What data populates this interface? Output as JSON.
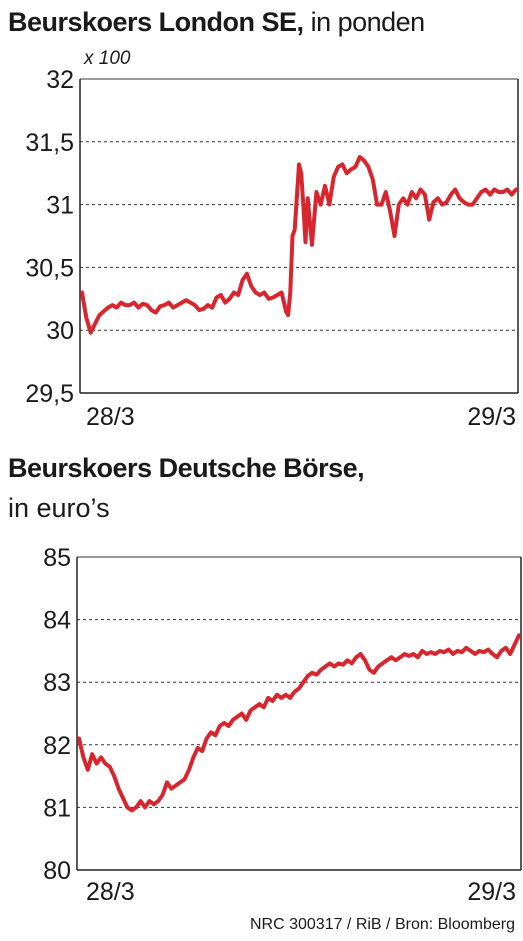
{
  "source": "NRC 300317 / RiB / Bron: Bloomberg",
  "chart_data": [
    {
      "type": "line",
      "title": "Beurskoers London SE,",
      "subtitle": "in ponden",
      "unit_label": "x 100",
      "ylim": [
        29.5,
        32
      ],
      "yticks": [
        "32",
        "31,5",
        "31",
        "30,5",
        "30",
        "29,5"
      ],
      "ytick_values": [
        32,
        31.5,
        31,
        30.5,
        30,
        29.5
      ],
      "x_tick_labels": [
        "28/3",
        "29/3"
      ],
      "grid": true,
      "color": "#d7262e",
      "series": [
        {
          "x": [
            0,
            0.01,
            0.02,
            0.03,
            0.04,
            0.05,
            0.06,
            0.07,
            0.08,
            0.09,
            0.1,
            0.11,
            0.12,
            0.13,
            0.14,
            0.15,
            0.16,
            0.17,
            0.18,
            0.19,
            0.2,
            0.21,
            0.22,
            0.23,
            0.24,
            0.25,
            0.26,
            0.27,
            0.28,
            0.29,
            0.3,
            0.31,
            0.32,
            0.33,
            0.34,
            0.35,
            0.36,
            0.37,
            0.38,
            0.39,
            0.4,
            0.41,
            0.42,
            0.43,
            0.44,
            0.45,
            0.46,
            0.47,
            0.475,
            0.48,
            0.485,
            0.49,
            0.5,
            0.505,
            0.51,
            0.515,
            0.52,
            0.53,
            0.54,
            0.55,
            0.56,
            0.57,
            0.58,
            0.59,
            0.6,
            0.61,
            0.62,
            0.63,
            0.64,
            0.65,
            0.66,
            0.67,
            0.68,
            0.69,
            0.7,
            0.71,
            0.72,
            0.73,
            0.74,
            0.75,
            0.76,
            0.77,
            0.78,
            0.79,
            0.8,
            0.81,
            0.82,
            0.83,
            0.84,
            0.85,
            0.86,
            0.87,
            0.88,
            0.89,
            0.9,
            0.91,
            0.92,
            0.93,
            0.94,
            0.95,
            0.96,
            0.97,
            0.98,
            0.99,
            1.0
          ],
          "y": [
            30.3,
            30.1,
            29.98,
            30.05,
            30.12,
            30.15,
            30.18,
            30.2,
            30.18,
            30.22,
            30.2,
            30.2,
            30.22,
            30.18,
            30.21,
            30.2,
            30.16,
            30.14,
            30.19,
            30.2,
            30.22,
            30.18,
            30.2,
            30.22,
            30.24,
            30.22,
            30.2,
            30.16,
            30.17,
            30.2,
            30.18,
            30.26,
            30.28,
            30.22,
            30.25,
            30.3,
            30.28,
            30.4,
            30.45,
            30.35,
            30.3,
            30.28,
            30.3,
            30.25,
            30.26,
            30.28,
            30.3,
            30.15,
            30.12,
            30.3,
            30.75,
            30.8,
            31.32,
            31.25,
            31.0,
            30.7,
            31.05,
            30.68,
            31.1,
            31.0,
            31.15,
            31.0,
            31.22,
            31.3,
            31.32,
            31.25,
            31.28,
            31.3,
            31.38,
            31.35,
            31.3,
            31.2,
            31.0,
            31.0,
            31.1,
            30.95,
            30.75,
            31.0,
            31.05,
            31.0,
            31.1,
            31.05,
            31.12,
            31.08,
            30.88,
            31.02,
            31.05,
            31.0,
            31.02,
            31.08,
            31.12,
            31.05,
            31.02,
            31.0,
            31.0,
            31.05,
            31.1,
            31.12,
            31.08,
            31.12,
            31.1,
            31.1,
            31.12,
            31.08,
            31.12
          ]
        }
      ]
    },
    {
      "type": "line",
      "title": "Beurskoers Deutsche Börse,",
      "subtitle": "in euro’s",
      "ylim": [
        80,
        85
      ],
      "yticks": [
        "85",
        "84",
        "83",
        "82",
        "81",
        "80"
      ],
      "ytick_values": [
        85,
        84,
        83,
        82,
        81,
        80
      ],
      "x_tick_labels": [
        "28/3",
        "29/3"
      ],
      "grid": true,
      "color": "#d7262e",
      "series": [
        {
          "x": [
            0,
            0.01,
            0.02,
            0.03,
            0.04,
            0.05,
            0.06,
            0.07,
            0.08,
            0.09,
            0.1,
            0.11,
            0.12,
            0.13,
            0.14,
            0.15,
            0.16,
            0.17,
            0.18,
            0.19,
            0.2,
            0.21,
            0.22,
            0.23,
            0.24,
            0.25,
            0.26,
            0.27,
            0.28,
            0.29,
            0.3,
            0.31,
            0.32,
            0.33,
            0.34,
            0.35,
            0.36,
            0.37,
            0.38,
            0.39,
            0.4,
            0.41,
            0.42,
            0.43,
            0.44,
            0.45,
            0.46,
            0.47,
            0.48,
            0.49,
            0.5,
            0.51,
            0.52,
            0.53,
            0.54,
            0.55,
            0.56,
            0.57,
            0.58,
            0.59,
            0.6,
            0.61,
            0.62,
            0.63,
            0.64,
            0.65,
            0.66,
            0.67,
            0.68,
            0.69,
            0.7,
            0.71,
            0.72,
            0.73,
            0.74,
            0.75,
            0.76,
            0.77,
            0.78,
            0.79,
            0.8,
            0.81,
            0.82,
            0.83,
            0.84,
            0.85,
            0.86,
            0.87,
            0.88,
            0.89,
            0.9,
            0.91,
            0.92,
            0.93,
            0.94,
            0.95,
            0.96,
            0.97,
            0.98,
            0.99,
            1.0
          ],
          "y": [
            82.1,
            81.8,
            81.6,
            81.85,
            81.7,
            81.8,
            81.7,
            81.65,
            81.5,
            81.3,
            81.15,
            81.0,
            80.95,
            81.0,
            81.1,
            81.0,
            81.1,
            81.05,
            81.1,
            81.2,
            81.4,
            81.3,
            81.35,
            81.4,
            81.45,
            81.6,
            81.8,
            81.95,
            81.9,
            82.1,
            82.2,
            82.15,
            82.3,
            82.35,
            82.3,
            82.4,
            82.45,
            82.5,
            82.4,
            82.55,
            82.6,
            82.65,
            82.6,
            82.75,
            82.7,
            82.8,
            82.75,
            82.8,
            82.75,
            82.85,
            82.9,
            83.0,
            83.1,
            83.15,
            83.12,
            83.2,
            83.25,
            83.3,
            83.25,
            83.3,
            83.28,
            83.35,
            83.3,
            83.4,
            83.45,
            83.35,
            83.2,
            83.15,
            83.25,
            83.3,
            83.35,
            83.4,
            83.35,
            83.4,
            83.45,
            83.42,
            83.45,
            83.4,
            83.5,
            83.45,
            83.48,
            83.45,
            83.5,
            83.48,
            83.52,
            83.45,
            83.5,
            83.48,
            83.55,
            83.5,
            83.45,
            83.5,
            83.48,
            83.52,
            83.45,
            83.4,
            83.5,
            83.55,
            83.45,
            83.6,
            83.75
          ]
        }
      ]
    }
  ]
}
